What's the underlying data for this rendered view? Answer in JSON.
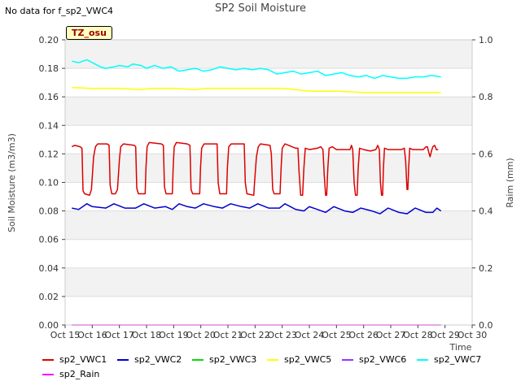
{
  "header": {
    "no_data_text": "No data for f_sp2_VWC4",
    "title": "SP2 Soil Moisture",
    "badge": "TZ_osu"
  },
  "chart_data": {
    "type": "line",
    "title": "SP2 Soil Moisture",
    "xlabel": "Time",
    "ylabel": "Soil Moisture (m3/m3)",
    "y2label": "Raim (mm)",
    "xlim": [
      15,
      30
    ],
    "ylim": [
      0.0,
      0.2
    ],
    "y2lim": [
      0.0,
      1.0
    ],
    "x_tick_labels": [
      "Oct 15",
      "Oct 16",
      "Oct 17",
      "Oct 18",
      "Oct 19",
      "Oct 20",
      "Oct 21",
      "Oct 22",
      "Oct 23",
      "Oct 24",
      "Oct 25",
      "Oct 26",
      "Oct 27",
      "Oct 28",
      "Oct 29",
      "Oct 30"
    ],
    "y_tick_labels": [
      "0.00",
      "0.02",
      "0.04",
      "0.06",
      "0.08",
      "0.10",
      "0.12",
      "0.14",
      "0.16",
      "0.18",
      "0.20"
    ],
    "y2_tick_labels": [
      "0.0",
      "0.2",
      "0.4",
      "0.6",
      "0.8",
      "1.0"
    ],
    "grid": "horizontal bands",
    "legend_position": "bottom",
    "series": [
      {
        "name": "sp2_VWC1",
        "color": "#dd0000",
        "axis": "left",
        "points": [
          [
            15.25,
            0.125
          ],
          [
            15.35,
            0.126
          ],
          [
            15.55,
            0.125
          ],
          [
            15.62,
            0.124
          ],
          [
            15.66,
            0.094
          ],
          [
            15.72,
            0.092
          ],
          [
            15.9,
            0.091
          ],
          [
            15.97,
            0.095
          ],
          [
            16.05,
            0.118
          ],
          [
            16.12,
            0.125
          ],
          [
            16.2,
            0.127
          ],
          [
            16.55,
            0.127
          ],
          [
            16.62,
            0.126
          ],
          [
            16.66,
            0.098
          ],
          [
            16.72,
            0.092
          ],
          [
            16.85,
            0.092
          ],
          [
            16.93,
            0.095
          ],
          [
            17.0,
            0.116
          ],
          [
            17.05,
            0.125
          ],
          [
            17.15,
            0.127
          ],
          [
            17.55,
            0.126
          ],
          [
            17.6,
            0.125
          ],
          [
            17.64,
            0.096
          ],
          [
            17.7,
            0.092
          ],
          [
            17.95,
            0.092
          ],
          [
            17.98,
            0.11
          ],
          [
            18.02,
            0.125
          ],
          [
            18.1,
            0.128
          ],
          [
            18.55,
            0.127
          ],
          [
            18.62,
            0.126
          ],
          [
            18.66,
            0.097
          ],
          [
            18.72,
            0.092
          ],
          [
            18.95,
            0.092
          ],
          [
            18.98,
            0.11
          ],
          [
            19.02,
            0.125
          ],
          [
            19.1,
            0.128
          ],
          [
            19.5,
            0.127
          ],
          [
            19.6,
            0.126
          ],
          [
            19.64,
            0.095
          ],
          [
            19.7,
            0.092
          ],
          [
            19.96,
            0.092
          ],
          [
            19.99,
            0.11
          ],
          [
            20.03,
            0.124
          ],
          [
            20.12,
            0.127
          ],
          [
            20.6,
            0.127
          ],
          [
            20.64,
            0.1
          ],
          [
            20.7,
            0.092
          ],
          [
            20.95,
            0.092
          ],
          [
            20.98,
            0.11
          ],
          [
            21.03,
            0.125
          ],
          [
            21.12,
            0.127
          ],
          [
            21.6,
            0.127
          ],
          [
            21.64,
            0.1
          ],
          [
            21.7,
            0.092
          ],
          [
            21.95,
            0.091
          ],
          [
            21.98,
            0.1
          ],
          [
            22.05,
            0.118
          ],
          [
            22.12,
            0.125
          ],
          [
            22.2,
            0.127
          ],
          [
            22.55,
            0.126
          ],
          [
            22.6,
            0.12
          ],
          [
            22.65,
            0.095
          ],
          [
            22.7,
            0.092
          ],
          [
            22.92,
            0.092
          ],
          [
            22.96,
            0.11
          ],
          [
            23.0,
            0.124
          ],
          [
            23.1,
            0.127
          ],
          [
            23.5,
            0.124
          ],
          [
            23.58,
            0.124
          ],
          [
            23.62,
            0.108
          ],
          [
            23.68,
            0.091
          ],
          [
            23.75,
            0.091
          ],
          [
            23.8,
            0.11
          ],
          [
            23.85,
            0.124
          ],
          [
            24.0,
            0.123
          ],
          [
            24.3,
            0.124
          ],
          [
            24.42,
            0.125
          ],
          [
            24.5,
            0.123
          ],
          [
            24.55,
            0.105
          ],
          [
            24.6,
            0.091
          ],
          [
            24.64,
            0.091
          ],
          [
            24.68,
            0.11
          ],
          [
            24.73,
            0.124
          ],
          [
            24.85,
            0.125
          ],
          [
            25.0,
            0.123
          ],
          [
            25.5,
            0.123
          ],
          [
            25.55,
            0.126
          ],
          [
            25.6,
            0.123
          ],
          [
            25.65,
            0.1
          ],
          [
            25.7,
            0.091
          ],
          [
            25.76,
            0.091
          ],
          [
            25.8,
            0.11
          ],
          [
            25.85,
            0.124
          ],
          [
            26.0,
            0.123
          ],
          [
            26.25,
            0.122
          ],
          [
            26.45,
            0.123
          ],
          [
            26.52,
            0.126
          ],
          [
            26.58,
            0.123
          ],
          [
            26.62,
            0.1
          ],
          [
            26.66,
            0.091
          ],
          [
            26.7,
            0.091
          ],
          [
            26.73,
            0.11
          ],
          [
            26.77,
            0.124
          ],
          [
            26.9,
            0.123
          ],
          [
            27.4,
            0.123
          ],
          [
            27.5,
            0.124
          ],
          [
            27.55,
            0.115
          ],
          [
            27.6,
            0.095
          ],
          [
            27.63,
            0.095
          ],
          [
            27.66,
            0.11
          ],
          [
            27.7,
            0.124
          ],
          [
            27.8,
            0.123
          ],
          [
            28.2,
            0.123
          ],
          [
            28.3,
            0.125
          ],
          [
            28.35,
            0.125
          ],
          [
            28.4,
            0.121
          ],
          [
            28.45,
            0.118
          ],
          [
            28.5,
            0.122
          ],
          [
            28.55,
            0.125
          ],
          [
            28.62,
            0.126
          ],
          [
            28.68,
            0.123
          ],
          [
            28.75,
            0.123
          ]
        ]
      },
      {
        "name": "sp2_VWC2",
        "color": "#0000cc",
        "axis": "left",
        "points": [
          [
            15.25,
            0.082
          ],
          [
            15.5,
            0.081
          ],
          [
            15.8,
            0.085
          ],
          [
            16.0,
            0.083
          ],
          [
            16.5,
            0.082
          ],
          [
            16.8,
            0.085
          ],
          [
            17.2,
            0.082
          ],
          [
            17.6,
            0.082
          ],
          [
            17.9,
            0.085
          ],
          [
            18.3,
            0.082
          ],
          [
            18.7,
            0.083
          ],
          [
            18.95,
            0.081
          ],
          [
            19.2,
            0.085
          ],
          [
            19.5,
            0.083
          ],
          [
            19.8,
            0.082
          ],
          [
            20.1,
            0.085
          ],
          [
            20.5,
            0.083
          ],
          [
            20.8,
            0.082
          ],
          [
            21.1,
            0.085
          ],
          [
            21.5,
            0.083
          ],
          [
            21.8,
            0.082
          ],
          [
            22.1,
            0.085
          ],
          [
            22.5,
            0.082
          ],
          [
            22.9,
            0.082
          ],
          [
            23.1,
            0.085
          ],
          [
            23.5,
            0.081
          ],
          [
            23.8,
            0.08
          ],
          [
            24.0,
            0.083
          ],
          [
            24.3,
            0.081
          ],
          [
            24.6,
            0.079
          ],
          [
            24.9,
            0.083
          ],
          [
            25.3,
            0.08
          ],
          [
            25.6,
            0.079
          ],
          [
            25.9,
            0.082
          ],
          [
            26.3,
            0.08
          ],
          [
            26.6,
            0.078
          ],
          [
            26.9,
            0.082
          ],
          [
            27.3,
            0.079
          ],
          [
            27.6,
            0.078
          ],
          [
            27.9,
            0.082
          ],
          [
            28.3,
            0.079
          ],
          [
            28.55,
            0.079
          ],
          [
            28.7,
            0.082
          ],
          [
            28.85,
            0.08
          ]
        ]
      },
      {
        "name": "sp2_VWC3",
        "color": "#00dd00",
        "axis": "left",
        "points": []
      },
      {
        "name": "sp2_VWC5",
        "color": "#ffff00",
        "axis": "left",
        "points": [
          [
            15.25,
            0.1665
          ],
          [
            16.0,
            0.166
          ],
          [
            17.0,
            0.166
          ],
          [
            17.8,
            0.165
          ],
          [
            18.2,
            0.166
          ],
          [
            19.0,
            0.166
          ],
          [
            19.8,
            0.165
          ],
          [
            20.2,
            0.166
          ],
          [
            21.0,
            0.166
          ],
          [
            22.0,
            0.166
          ],
          [
            23.0,
            0.166
          ],
          [
            23.5,
            0.165
          ],
          [
            24.0,
            0.164
          ],
          [
            25.0,
            0.164
          ],
          [
            26.0,
            0.163
          ],
          [
            27.0,
            0.163
          ],
          [
            27.7,
            0.163
          ],
          [
            28.0,
            0.163
          ],
          [
            28.85,
            0.163
          ]
        ]
      },
      {
        "name": "sp2_VWC6",
        "color": "#9933ff",
        "axis": "left",
        "points": []
      },
      {
        "name": "sp2_VWC7",
        "color": "#00ffff",
        "axis": "left",
        "points": [
          [
            15.25,
            0.185
          ],
          [
            15.5,
            0.184
          ],
          [
            15.8,
            0.186
          ],
          [
            16.0,
            0.184
          ],
          [
            16.3,
            0.181
          ],
          [
            16.5,
            0.18
          ],
          [
            16.8,
            0.181
          ],
          [
            17.0,
            0.182
          ],
          [
            17.3,
            0.181
          ],
          [
            17.5,
            0.183
          ],
          [
            17.8,
            0.182
          ],
          [
            18.0,
            0.18
          ],
          [
            18.3,
            0.182
          ],
          [
            18.6,
            0.18
          ],
          [
            18.9,
            0.181
          ],
          [
            19.2,
            0.178
          ],
          [
            19.5,
            0.179
          ],
          [
            19.8,
            0.18
          ],
          [
            20.1,
            0.178
          ],
          [
            20.4,
            0.179
          ],
          [
            20.7,
            0.181
          ],
          [
            21.0,
            0.18
          ],
          [
            21.3,
            0.179
          ],
          [
            21.6,
            0.18
          ],
          [
            21.9,
            0.179
          ],
          [
            22.2,
            0.18
          ],
          [
            22.5,
            0.179
          ],
          [
            22.8,
            0.176
          ],
          [
            23.1,
            0.177
          ],
          [
            23.4,
            0.178
          ],
          [
            23.7,
            0.176
          ],
          [
            24.0,
            0.177
          ],
          [
            24.3,
            0.178
          ],
          [
            24.6,
            0.175
          ],
          [
            24.9,
            0.176
          ],
          [
            25.2,
            0.177
          ],
          [
            25.5,
            0.175
          ],
          [
            25.8,
            0.174
          ],
          [
            26.1,
            0.175
          ],
          [
            26.4,
            0.173
          ],
          [
            26.7,
            0.175
          ],
          [
            27.0,
            0.174
          ],
          [
            27.3,
            0.173
          ],
          [
            27.6,
            0.173
          ],
          [
            27.9,
            0.174
          ],
          [
            28.2,
            0.174
          ],
          [
            28.5,
            0.175
          ],
          [
            28.85,
            0.174
          ]
        ]
      },
      {
        "name": "sp2_Rain",
        "color": "#ff00ff",
        "axis": "right",
        "points": [
          [
            15.25,
            0.0
          ],
          [
            28.85,
            0.0
          ]
        ]
      }
    ]
  }
}
